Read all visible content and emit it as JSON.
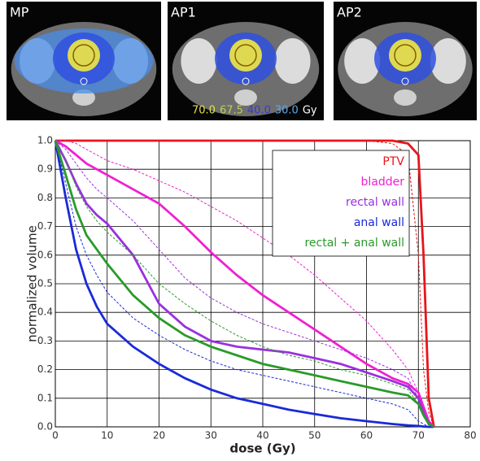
{
  "panels": [
    "MP",
    "AP1",
    "AP2"
  ],
  "dose_legend": [
    {
      "text": "70.0",
      "color": "#e8e04a"
    },
    {
      "text": "67.5",
      "color": "#b8d050"
    },
    {
      "text": "40.0",
      "color": "#3a3ad0"
    },
    {
      "text": "30.0",
      "color": "#60a8e8"
    },
    {
      "text": "Gy",
      "color": "#ffffff"
    }
  ],
  "chart_data": {
    "type": "line",
    "x_label": "dose (Gy)",
    "y_label": "normalized volume",
    "xlim": [
      0,
      80
    ],
    "ylim": [
      0,
      1
    ],
    "xticks": [
      0,
      10,
      20,
      30,
      40,
      50,
      60,
      70,
      80
    ],
    "yticks": [
      {
        "value": 0,
        "label": "0.0"
      },
      0.1,
      0.2,
      0.3,
      0.4,
      0.5,
      0.6,
      0.7,
      0.8,
      0.9,
      {
        "value": 1,
        "label": "1.0"
      }
    ],
    "grid": true,
    "legend": "upper right",
    "x": [
      0,
      2,
      4,
      6,
      8,
      10,
      15,
      20,
      25,
      30,
      35,
      40,
      45,
      50,
      55,
      60,
      65,
      68,
      70,
      71,
      72,
      73
    ],
    "series": [
      {
        "name": "PTV",
        "color": "#e8141a",
        "values": [
          1,
          1,
          1,
          1,
          1,
          1,
          1,
          1,
          1,
          1,
          1,
          1,
          1,
          1,
          1,
          1,
          1,
          0.99,
          0.95,
          0.6,
          0.1,
          0
        ],
        "dashed_values": [
          1,
          1,
          1,
          1,
          1,
          1,
          1,
          1,
          1,
          1,
          1,
          1,
          1,
          1,
          1,
          1,
          0.99,
          0.95,
          0.6,
          0.2,
          0.05,
          0
        ]
      },
      {
        "name": "bladder",
        "color": "#f020d0",
        "values": [
          1,
          0.98,
          0.95,
          0.92,
          0.9,
          0.88,
          0.83,
          0.78,
          0.7,
          0.61,
          0.53,
          0.46,
          0.4,
          0.34,
          0.28,
          0.22,
          0.17,
          0.15,
          0.12,
          0.07,
          0.02,
          0
        ],
        "dashed_values": [
          1,
          1,
          0.99,
          0.97,
          0.95,
          0.93,
          0.9,
          0.86,
          0.82,
          0.77,
          0.72,
          0.66,
          0.6,
          0.53,
          0.45,
          0.37,
          0.27,
          0.2,
          0.12,
          0.06,
          0.02,
          0
        ]
      },
      {
        "name": "rectal wall",
        "color": "#9a30e0",
        "values": [
          1,
          0.93,
          0.85,
          0.78,
          0.74,
          0.71,
          0.6,
          0.43,
          0.35,
          0.3,
          0.28,
          0.27,
          0.26,
          0.24,
          0.22,
          0.19,
          0.16,
          0.14,
          0.1,
          0.05,
          0.01,
          0
        ],
        "dashed_values": [
          1,
          0.97,
          0.92,
          0.87,
          0.83,
          0.8,
          0.72,
          0.62,
          0.52,
          0.45,
          0.4,
          0.36,
          0.33,
          0.3,
          0.27,
          0.24,
          0.2,
          0.17,
          0.1,
          0.05,
          0.01,
          0
        ]
      },
      {
        "name": "anal wall",
        "color": "#1a2ad8",
        "values": [
          1,
          0.8,
          0.62,
          0.5,
          0.42,
          0.36,
          0.28,
          0.22,
          0.17,
          0.13,
          0.1,
          0.08,
          0.06,
          0.045,
          0.03,
          0.02,
          0.01,
          0.005,
          0.003,
          0.001,
          0,
          0
        ],
        "dashed_values": [
          1,
          0.85,
          0.7,
          0.6,
          0.53,
          0.47,
          0.38,
          0.32,
          0.27,
          0.23,
          0.2,
          0.18,
          0.16,
          0.14,
          0.12,
          0.1,
          0.08,
          0.06,
          0.02,
          0.01,
          0,
          0
        ]
      },
      {
        "name": "rectal + anal wall",
        "color": "#2a9a2a",
        "values": [
          1,
          0.88,
          0.76,
          0.67,
          0.62,
          0.57,
          0.46,
          0.38,
          0.32,
          0.28,
          0.25,
          0.22,
          0.2,
          0.18,
          0.16,
          0.14,
          0.12,
          0.11,
          0.08,
          0.04,
          0.01,
          0
        ],
        "dashed_values": [
          1,
          0.93,
          0.84,
          0.77,
          0.72,
          0.68,
          0.6,
          0.5,
          0.43,
          0.37,
          0.32,
          0.28,
          0.25,
          0.23,
          0.2,
          0.18,
          0.15,
          0.13,
          0.08,
          0.04,
          0.01,
          0
        ]
      }
    ]
  }
}
